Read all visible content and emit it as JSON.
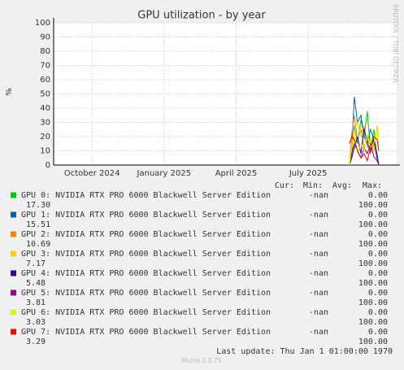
{
  "chart_data": {
    "type": "line",
    "title": "GPU utilization - by year",
    "y_label": "%",
    "credit": "RRDTOOL / TOBI OETIKER",
    "last_update": "Last update: Thu Jan  1 01:00:00 1970",
    "footer": "Munin 2.0.75",
    "ylim": [
      0,
      100
    ],
    "yticks": [
      0,
      10,
      20,
      30,
      40,
      50,
      60,
      70,
      80,
      90,
      100
    ],
    "xlim": [
      2024.617,
      2025.807
    ],
    "xticks": [
      {
        "value": 2024.75,
        "label": "October 2024"
      },
      {
        "value": 2025.0,
        "label": "January 2025"
      },
      {
        "value": 2025.25,
        "label": "April 2025"
      },
      {
        "value": 2025.5,
        "label": "July 2025"
      }
    ],
    "grid": true,
    "legend_columns": [
      "Cur:",
      "Min:",
      "Avg:",
      "Max:"
    ],
    "x": [
      2025.643,
      2025.651,
      2025.66,
      2025.671,
      2025.683,
      2025.694,
      2025.705,
      2025.716,
      2025.728,
      2025.739,
      2025.745
    ],
    "series": [
      {
        "name": "GPU 0: NVIDIA RTX PRO 6000 Blackwell Server Edition",
        "color": "#00cc00",
        "values": [
          0,
          5,
          28,
          15,
          32,
          20,
          38,
          10,
          25,
          5,
          0
        ],
        "stats": {
          "cur": "-nan",
          "min": "0.00",
          "avg": "17.30",
          "max": "100.00"
        }
      },
      {
        "name": "GPU 1: NVIDIA RTX PRO 6000 Blackwell Server Edition",
        "color": "#0066b3",
        "values": [
          0,
          10,
          48,
          30,
          35,
          20,
          15,
          25,
          18,
          8,
          0
        ],
        "stats": {
          "cur": "-nan",
          "min": "0.00",
          "avg": "15.51",
          "max": "100.00"
        }
      },
      {
        "name": "GPU 2: NVIDIA RTX PRO 6000 Blackwell Server Edition",
        "color": "#ff8000",
        "values": [
          0,
          22,
          35,
          18,
          25,
          12,
          20,
          8,
          15,
          5,
          0
        ],
        "stats": {
          "cur": "-nan",
          "min": "0.00",
          "avg": "10.69",
          "max": "100.00"
        }
      },
      {
        "name": "GPU 3: NVIDIA RTX PRO 6000 Blackwell Server Edition",
        "color": "#ffcc00",
        "values": [
          0,
          15,
          25,
          30,
          20,
          28,
          12,
          18,
          10,
          28,
          20
        ],
        "stats": {
          "cur": "-nan",
          "min": "0.00",
          "avg": "7.17",
          "max": "100.00"
        }
      },
      {
        "name": "GPU 4: NVIDIA RTX PRO 6000 Blackwell Server Edition",
        "color": "#330099",
        "values": [
          0,
          5,
          12,
          20,
          8,
          26,
          15,
          10,
          18,
          5,
          0
        ],
        "stats": {
          "cur": "-nan",
          "min": "0.00",
          "avg": "5.48",
          "max": "100.00"
        }
      },
      {
        "name": "GPU 5: NVIDIA RTX PRO 6000 Blackwell Server Edition",
        "color": "#990099",
        "values": [
          0,
          8,
          15,
          10,
          5,
          12,
          8,
          15,
          6,
          3,
          0
        ],
        "stats": {
          "cur": "-nan",
          "min": "0.00",
          "avg": "3.81",
          "max": "100.00"
        }
      },
      {
        "name": "GPU 6: NVIDIA RTX PRO 6000 Blackwell Server Edition",
        "color": "#ccff00",
        "values": [
          0,
          12,
          20,
          8,
          15,
          10,
          22,
          12,
          16,
          25,
          10
        ],
        "stats": {
          "cur": "-nan",
          "min": "0.00",
          "avg": "3.03",
          "max": "100.00"
        }
      },
      {
        "name": "GPU 7: NVIDIA RTX PRO 6000 Blackwell Server Edition",
        "color": "#ff0000",
        "values": [
          15,
          20,
          18,
          10,
          5,
          8,
          3,
          12,
          20,
          18,
          10
        ],
        "stats": {
          "cur": "-nan",
          "min": "0.00",
          "avg": "3.29",
          "max": "100.00"
        }
      }
    ]
  }
}
